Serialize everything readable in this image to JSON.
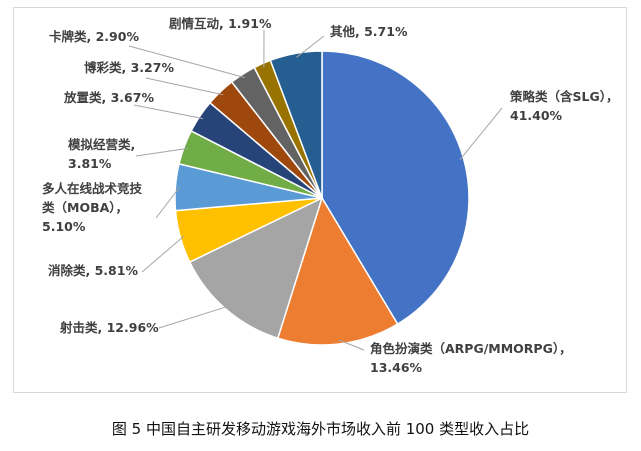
{
  "chart_data": {
    "type": "pie",
    "categories": [
      "策略类（含SLG）",
      "角色扮演类（ARPG/MMORPG）",
      "射击类",
      "消除类",
      "多人在线战术竞技类（MOBA）",
      "模拟经营类",
      "放置类",
      "博彩类",
      "卡牌类",
      "剧情互动",
      "其他"
    ],
    "values": [
      41.4,
      13.46,
      12.96,
      5.81,
      5.1,
      3.81,
      3.67,
      3.27,
      2.9,
      1.91,
      5.71
    ],
    "colors": [
      "#4472c4",
      "#ed7d31",
      "#a5a5a5",
      "#ffc000",
      "#5b9bd5",
      "#70ad47",
      "#264478",
      "#9e480e",
      "#636363",
      "#997300",
      "#255e91"
    ],
    "labels": [
      [
        "策略类（含SLG），",
        "41.40%"
      ],
      [
        "角色扮演类（ARPG/MMORPG），",
        "13.46%"
      ],
      [
        "射击类, 12.96%"
      ],
      [
        "消除类, 5.81%"
      ],
      [
        "多人在线战术竞技",
        "类（MOBA），",
        "5.10%"
      ],
      [
        "模拟经营类,",
        "3.81%"
      ],
      [
        "放置类, 3.67%"
      ],
      [
        "博彩类, 3.27%"
      ],
      [
        "卡牌类, 2.90%"
      ],
      [
        "剧情互动, 1.91%"
      ],
      [
        "其他, 5.71%"
      ]
    ]
  },
  "caption": "图 5 中国自主研发移动游戏海外市场收入前 100 类型收入占比"
}
